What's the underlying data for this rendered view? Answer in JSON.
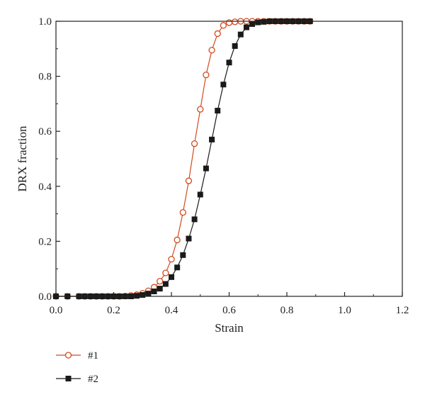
{
  "chart_data": {
    "type": "line",
    "title": "",
    "xlabel": "Strain",
    "ylabel": "DRX fraction",
    "xlim": [
      0.0,
      1.2
    ],
    "ylim": [
      0.0,
      1.0
    ],
    "xticks": [
      "0.0",
      "0.2",
      "0.4",
      "0.6",
      "0.8",
      "1.0",
      "1.2"
    ],
    "yticks": [
      "0.0",
      "0.2",
      "0.4",
      "0.6",
      "0.8",
      "1.0"
    ],
    "grid": false,
    "legend_position": "bottom-left, below plot",
    "series": [
      {
        "name": "#1",
        "color": "#d24a1e",
        "marker": "open-circle",
        "x": [
          0.0,
          0.04,
          0.08,
          0.1,
          0.12,
          0.14,
          0.16,
          0.18,
          0.2,
          0.22,
          0.24,
          0.26,
          0.28,
          0.3,
          0.32,
          0.34,
          0.36,
          0.38,
          0.4,
          0.42,
          0.44,
          0.46,
          0.48,
          0.5,
          0.52,
          0.54,
          0.56,
          0.58,
          0.6,
          0.62,
          0.64,
          0.66,
          0.68,
          0.7,
          0.72,
          0.74,
          0.76,
          0.78,
          0.8,
          0.82,
          0.84,
          0.86,
          0.88
        ],
        "y": [
          0.0,
          0.0,
          0.0,
          0.0,
          0.0,
          0.0,
          0.0,
          0.0,
          0.0,
          0.0,
          0.001,
          0.003,
          0.006,
          0.011,
          0.02,
          0.033,
          0.055,
          0.085,
          0.135,
          0.205,
          0.305,
          0.42,
          0.555,
          0.68,
          0.805,
          0.895,
          0.955,
          0.985,
          0.995,
          0.998,
          1.0,
          1.0,
          1.0,
          1.0,
          1.0,
          1.0,
          1.0,
          1.0,
          1.0,
          1.0,
          1.0,
          1.0,
          1.0
        ]
      },
      {
        "name": "#2",
        "color": "#1a1a1a",
        "marker": "filled-square",
        "x": [
          0.0,
          0.04,
          0.08,
          0.1,
          0.12,
          0.14,
          0.16,
          0.18,
          0.2,
          0.22,
          0.24,
          0.26,
          0.28,
          0.3,
          0.32,
          0.34,
          0.36,
          0.38,
          0.4,
          0.42,
          0.44,
          0.46,
          0.48,
          0.5,
          0.52,
          0.54,
          0.56,
          0.58,
          0.6,
          0.62,
          0.64,
          0.66,
          0.68,
          0.7,
          0.72,
          0.74,
          0.76,
          0.78,
          0.8,
          0.82,
          0.84,
          0.86,
          0.88
        ],
        "y": [
          0.0,
          0.0,
          0.0,
          0.0,
          0.0,
          0.0,
          0.0,
          0.0,
          0.0,
          0.0,
          0.0,
          0.0,
          0.002,
          0.005,
          0.01,
          0.018,
          0.028,
          0.045,
          0.07,
          0.105,
          0.15,
          0.21,
          0.28,
          0.37,
          0.465,
          0.57,
          0.675,
          0.77,
          0.85,
          0.91,
          0.952,
          0.978,
          0.99,
          0.996,
          0.998,
          1.0,
          1.0,
          1.0,
          1.0,
          1.0,
          1.0,
          1.0,
          1.0
        ]
      }
    ]
  }
}
